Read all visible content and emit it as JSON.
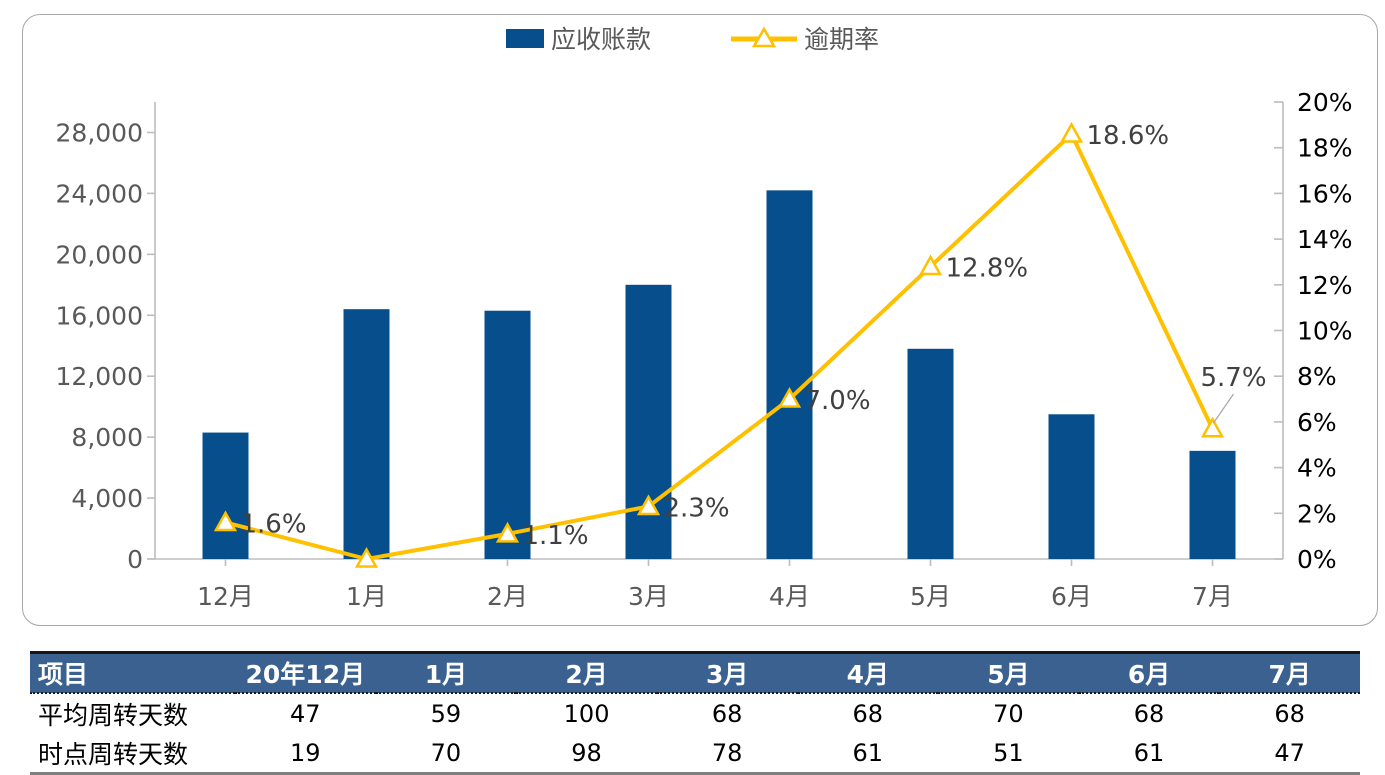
{
  "legend": {
    "bars_label": "应收账款",
    "line_label": "逾期率"
  },
  "chart_data": {
    "type": "combo",
    "categories": [
      "12月",
      "1月",
      "2月",
      "3月",
      "4月",
      "5月",
      "6月",
      "7月"
    ],
    "series": [
      {
        "name": "应收账款",
        "type": "bar",
        "axis": "left",
        "values": [
          8300,
          16400,
          16300,
          18000,
          24200,
          13800,
          9500,
          7100
        ],
        "color": "#074F8C"
      },
      {
        "name": "逾期率",
        "type": "line",
        "axis": "right",
        "values": [
          1.6,
          0.0,
          1.1,
          2.3,
          7.0,
          12.8,
          18.6,
          5.7
        ],
        "labels": [
          "1.6%",
          "",
          "1.1%",
          "2.3%",
          "7.0%",
          "12.8%",
          "18.6%",
          "5.7%"
        ],
        "color": "#FFC000",
        "marker": "triangle-up"
      }
    ],
    "left_axis": {
      "min": 0,
      "max": 30000,
      "tick_step": 4000,
      "tick_labels": [
        "0",
        "4,000",
        "8,000",
        "12,000",
        "16,000",
        "20,000",
        "24,000",
        "28,000"
      ],
      "label_color": "#595959"
    },
    "right_axis": {
      "min": 0,
      "max": 20,
      "tick_step": 2,
      "tick_labels": [
        "0%",
        "2%",
        "4%",
        "6%",
        "8%",
        "10%",
        "12%",
        "14%",
        "16%",
        "18%",
        "20%"
      ],
      "label_color": "#000000"
    },
    "grid": false,
    "legend_position": "top",
    "data_label_color": "#404040",
    "axis_line_color": "#BDBDBD"
  },
  "table": {
    "header": [
      "项目",
      "20年12月",
      "1月",
      "2月",
      "3月",
      "4月",
      "5月",
      "6月",
      "7月"
    ],
    "rows": [
      {
        "label": "平均周转天数",
        "values": [
          "47",
          "59",
          "100",
          "68",
          "68",
          "70",
          "68",
          "68"
        ]
      },
      {
        "label": "时点周转天数",
        "values": [
          "19",
          "70",
          "98",
          "78",
          "61",
          "51",
          "61",
          "47"
        ]
      }
    ],
    "header_bg": "#3A618F",
    "header_text_color": "#FFFFFF"
  }
}
